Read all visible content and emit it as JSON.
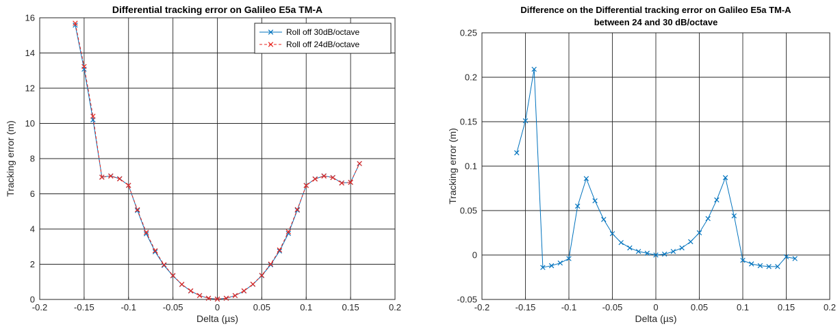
{
  "chart_data": [
    {
      "type": "line",
      "title": "Differential tracking error on Galileo E5a TM-A",
      "xlabel": "Delta (µs)",
      "ylabel": "Tracking error (m)",
      "xlim": [
        -0.2,
        0.2
      ],
      "ylim": [
        0,
        16
      ],
      "xticks": [
        -0.2,
        -0.15,
        -0.1,
        -0.05,
        0,
        0.05,
        0.1,
        0.15,
        0.2
      ],
      "xticklabels": [
        "-0.2",
        "-0.15",
        "-0.1",
        "-0.05",
        "0",
        "0.05",
        "0.1",
        "0.15",
        "0.2"
      ],
      "yticks": [
        0,
        2,
        4,
        6,
        8,
        10,
        12,
        14,
        16
      ],
      "yticklabels": [
        "0",
        "2",
        "4",
        "6",
        "8",
        "10",
        "12",
        "14",
        "16"
      ],
      "grid": true,
      "legend": "top-right",
      "series": [
        {
          "name": "Roll off 30dB/octave",
          "color": "#0072BD",
          "line": "solid",
          "marker": "x",
          "x": [
            -0.16,
            -0.15,
            -0.14,
            -0.13,
            -0.12,
            -0.11,
            -0.1,
            -0.09,
            -0.08,
            -0.07,
            -0.06,
            -0.05,
            -0.04,
            -0.03,
            -0.02,
            -0.01,
            0,
            0.01,
            0.02,
            0.03,
            0.04,
            0.05,
            0.06,
            0.07,
            0.08,
            0.09,
            0.1,
            0.11,
            0.12,
            0.13,
            0.14,
            0.15,
            0.16
          ],
          "y": [
            15.58,
            13.08,
            10.2,
            6.95,
            7.02,
            6.86,
            6.48,
            5.05,
            3.73,
            2.71,
            1.93,
            1.34,
            0.85,
            0.48,
            0.22,
            0.07,
            0.02,
            0.07,
            0.22,
            0.48,
            0.86,
            1.35,
            1.97,
            2.75,
            3.75,
            5.07,
            6.48,
            6.85,
            7.02,
            6.93,
            6.62,
            6.65,
            7.72
          ]
        },
        {
          "name": "Roll off 24dB/octave",
          "color": "#E8261F",
          "line": "dashed",
          "marker": "x",
          "x": [
            -0.16,
            -0.15,
            -0.14,
            -0.13,
            -0.12,
            -0.11,
            -0.1,
            -0.09,
            -0.08,
            -0.07,
            -0.06,
            -0.05,
            -0.04,
            -0.03,
            -0.02,
            -0.01,
            0,
            0.01,
            0.02,
            0.03,
            0.04,
            0.05,
            0.06,
            0.07,
            0.08,
            0.09,
            0.1,
            0.11,
            0.12,
            0.13,
            0.14,
            0.15,
            0.16
          ],
          "y": [
            15.69,
            13.23,
            10.41,
            6.94,
            7.01,
            6.85,
            6.48,
            5.1,
            3.81,
            2.77,
            1.97,
            1.36,
            0.86,
            0.49,
            0.22,
            0.07,
            0.02,
            0.07,
            0.22,
            0.49,
            0.87,
            1.37,
            2.01,
            2.81,
            3.84,
            5.11,
            6.47,
            6.84,
            7.01,
            6.92,
            6.61,
            6.65,
            7.72
          ]
        }
      ]
    },
    {
      "type": "line",
      "title": "Difference on the Differential tracking error on Galileo E5a TM-A",
      "subtitle": "between 24 and 30 dB/octave",
      "xlabel": "Delta (µs)",
      "ylabel": "Tracking error (m)",
      "xlim": [
        -0.2,
        0.2
      ],
      "ylim": [
        -0.05,
        0.25
      ],
      "xticks": [
        -0.2,
        -0.15,
        -0.1,
        -0.05,
        0,
        0.05,
        0.1,
        0.15,
        0.2
      ],
      "xticklabels": [
        "-0.2",
        "-0.15",
        "-0.1",
        "-0.05",
        "0",
        "0.05",
        "0.1",
        "0.15",
        "0.2"
      ],
      "yticks": [
        -0.05,
        0,
        0.05,
        0.1,
        0.15,
        0.2,
        0.25
      ],
      "yticklabels": [
        "-0.05",
        "0",
        "0.05",
        "0.1",
        "0.15",
        "0.2",
        "0.25"
      ],
      "grid": true,
      "series": [
        {
          "color": "#0072BD",
          "line": "solid",
          "marker": "x",
          "x": [
            -0.16,
            -0.15,
            -0.14,
            -0.13,
            -0.12,
            -0.11,
            -0.1,
            -0.09,
            -0.08,
            -0.07,
            -0.06,
            -0.05,
            -0.04,
            -0.03,
            -0.02,
            -0.01,
            0,
            0.01,
            0.02,
            0.03,
            0.04,
            0.05,
            0.06,
            0.07,
            0.08,
            0.09,
            0.1,
            0.11,
            0.12,
            0.13,
            0.14,
            0.15,
            0.16
          ],
          "y": [
            0.115,
            0.151,
            0.209,
            -0.014,
            -0.012,
            -0.009,
            -0.004,
            0.055,
            0.086,
            0.061,
            0.04,
            0.024,
            0.014,
            0.008,
            0.004,
            0.002,
            0.0,
            0.001,
            0.004,
            0.008,
            0.015,
            0.025,
            0.041,
            0.062,
            0.087,
            0.044,
            -0.006,
            -0.01,
            -0.012,
            -0.013,
            -0.013,
            -0.002,
            -0.004
          ]
        }
      ]
    }
  ]
}
